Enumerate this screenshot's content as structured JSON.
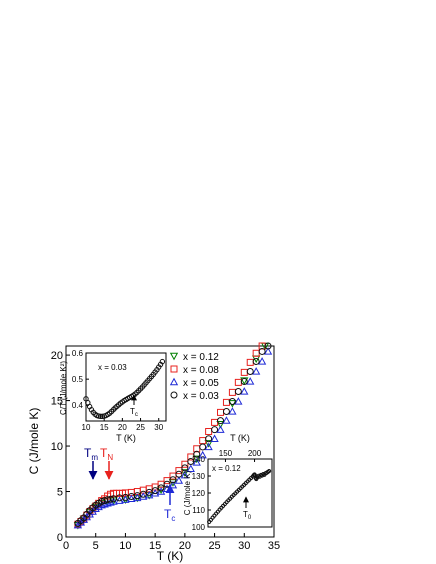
{
  "chart_data": [
    {
      "type": "scatter",
      "xlabel": "T (K)",
      "ylabel": "C (J/mole K)",
      "xlim": [
        0,
        35
      ],
      "ylim": [
        0,
        21
      ],
      "xticks": [
        "0",
        "5",
        "10",
        "15",
        "20",
        "25",
        "30",
        "35"
      ],
      "yticks": [
        "0",
        "5",
        "10",
        "15",
        "20"
      ],
      "legend": {
        "placement": "top-center",
        "items": [
          {
            "label": "x = 0.12",
            "color": "#008000",
            "marker": "triangle-down"
          },
          {
            "label": "x = 0.08",
            "color": "#e8211d",
            "marker": "square"
          },
          {
            "label": "x = 0.05",
            "color": "#1f2ad6",
            "marker": "triangle-up"
          },
          {
            "label": "x = 0.03",
            "color": "#111111",
            "marker": "circle"
          }
        ]
      },
      "annotations": [
        {
          "main": "T",
          "sub": "m",
          "color": "#000080"
        },
        {
          "main": "T",
          "sub": "N",
          "color": "#e8211d"
        },
        {
          "main": "T",
          "sub": "c",
          "color": "#1f2ad6"
        }
      ],
      "series": [
        {
          "name": "x = 0.12",
          "color": "#008000",
          "marker": "triangle-down",
          "x": [
            2,
            3,
            4,
            5,
            6,
            7,
            8,
            10,
            12,
            14,
            16,
            18,
            20,
            22,
            24,
            26,
            28,
            30,
            32,
            33.5
          ],
          "y": [
            1.3,
            2.0,
            2.7,
            3.3,
            3.7,
            3.9,
            4.0,
            4.1,
            4.3,
            4.6,
            5.2,
            6.0,
            7.1,
            8.6,
            10.3,
            12.4,
            14.7,
            17.2,
            19.6,
            21.0
          ]
        },
        {
          "name": "x = 0.08",
          "color": "#e8211d",
          "marker": "square",
          "x": [
            2,
            2.5,
            3,
            3.5,
            4,
            4.5,
            5,
            5.5,
            6,
            6.5,
            7,
            7.5,
            8,
            8.5,
            9,
            9.5,
            10,
            11,
            12,
            13,
            14,
            15,
            16,
            17,
            18,
            19,
            20,
            21,
            22,
            23,
            24,
            25,
            26,
            27,
            28,
            29,
            30,
            31,
            32,
            33
          ],
          "y": [
            1.4,
            1.7,
            2.0,
            2.4,
            2.8,
            3.1,
            3.4,
            3.7,
            4.0,
            4.2,
            4.5,
            4.7,
            4.8,
            4.8,
            4.8,
            4.8,
            4.85,
            4.9,
            5.0,
            5.15,
            5.3,
            5.5,
            5.8,
            6.2,
            6.7,
            7.3,
            8.0,
            8.8,
            9.7,
            10.6,
            11.6,
            12.6,
            13.7,
            14.8,
            15.9,
            17.0,
            18.1,
            19.2,
            20.2,
            21.0
          ]
        },
        {
          "name": "x = 0.05",
          "color": "#1f2ad6",
          "marker": "triangle-up",
          "x": [
            2,
            2.5,
            3,
            3.5,
            4,
            4.5,
            5,
            5.5,
            6,
            6.5,
            7,
            7.5,
            8,
            9,
            10,
            11,
            12,
            13,
            14,
            15,
            16,
            17,
            18,
            19,
            20,
            21,
            22,
            23,
            24,
            25,
            26,
            27,
            28,
            29,
            30,
            31,
            32,
            33,
            34
          ],
          "y": [
            1.3,
            1.6,
            1.9,
            2.2,
            2.5,
            2.8,
            3.1,
            3.3,
            3.5,
            3.6,
            3.7,
            3.8,
            3.9,
            4.0,
            4.1,
            4.2,
            4.3,
            4.45,
            4.6,
            4.8,
            5.0,
            5.3,
            5.7,
            6.2,
            6.8,
            7.5,
            8.2,
            9.0,
            9.9,
            10.8,
            11.8,
            12.8,
            13.8,
            14.9,
            16.0,
            17.1,
            18.2,
            19.3,
            20.4
          ]
        },
        {
          "name": "x = 0.03",
          "color": "#111111",
          "marker": "circle",
          "x": [
            2,
            2.5,
            3,
            3.5,
            4,
            4.5,
            5,
            5.5,
            6,
            6.5,
            7,
            7.5,
            8,
            9,
            10,
            11,
            12,
            13,
            14,
            15,
            16,
            17,
            18,
            19,
            20,
            21,
            22,
            23,
            24,
            25,
            26,
            27,
            28,
            29,
            30,
            31,
            32,
            33,
            34
          ],
          "y": [
            1.5,
            1.8,
            2.1,
            2.5,
            2.9,
            3.2,
            3.5,
            3.7,
            3.9,
            4.0,
            4.1,
            4.15,
            4.2,
            4.3,
            4.35,
            4.45,
            4.55,
            4.7,
            4.9,
            5.1,
            5.4,
            5.8,
            6.3,
            6.9,
            7.6,
            8.3,
            9.1,
            9.9,
            10.8,
            11.8,
            12.8,
            13.8,
            14.9,
            16.0,
            17.1,
            18.2,
            19.3,
            20.4,
            21.0
          ]
        }
      ]
    },
    {
      "type": "scatter",
      "xlabel": "T (K)",
      "ylabel": "C/T (J/mole K²)",
      "label": "x = 0.03",
      "xlim": [
        10,
        32
      ],
      "ylim": [
        0.34,
        0.6
      ],
      "xticks": [
        "10",
        "15",
        "20",
        "25",
        "30"
      ],
      "yticks": [
        "0.4",
        "0.5",
        "0.6"
      ],
      "annotation": {
        "main": "T",
        "sub": "c"
      },
      "series": [
        {
          "name": "x = 0.03",
          "color": "#111111",
          "marker": "circle",
          "x": [
            10,
            10.5,
            11,
            11.5,
            12,
            12.5,
            13,
            13.5,
            14,
            14.5,
            15,
            15.5,
            16,
            16.5,
            17,
            17.5,
            18,
            18.5,
            19,
            19.5,
            20,
            20.5,
            21,
            21.5,
            22,
            22.5,
            23,
            23.5,
            24,
            24.5,
            25,
            25.5,
            26,
            26.5,
            27,
            27.5,
            28,
            28.5,
            29,
            29.5,
            30,
            30.5,
            31
          ],
          "y": [
            0.425,
            0.41,
            0.395,
            0.383,
            0.373,
            0.366,
            0.361,
            0.359,
            0.358,
            0.358,
            0.359,
            0.361,
            0.365,
            0.37,
            0.376,
            0.383,
            0.39,
            0.396,
            0.402,
            0.408,
            0.413,
            0.418,
            0.422,
            0.426,
            0.43,
            0.434,
            0.438,
            0.443,
            0.449,
            0.456,
            0.463,
            0.47,
            0.478,
            0.486,
            0.494,
            0.502,
            0.51,
            0.518,
            0.527,
            0.536,
            0.546,
            0.556,
            0.567
          ]
        }
      ]
    },
    {
      "type": "scatter",
      "xlabel": "T (K)",
      "ylabel": "C (J/mole K)",
      "label": "x = 0.12",
      "xlim": [
        120,
        230
      ],
      "ylim": [
        100,
        140
      ],
      "xticks": [
        "150",
        "200"
      ],
      "yticks": [
        "100",
        "110",
        "120",
        "130",
        "140"
      ],
      "annotation": {
        "main": "T",
        "sub": "0"
      },
      "series": [
        {
          "name": "x = 0.12",
          "color": "#111111",
          "marker": "circle",
          "x": [
            122,
            125,
            128,
            131,
            134,
            137,
            140,
            143,
            146,
            149,
            152,
            155,
            158,
            161,
            164,
            167,
            170,
            173,
            176,
            179,
            182,
            185,
            188,
            191,
            194,
            197,
            199,
            200,
            201,
            202,
            203,
            205,
            207,
            209,
            211,
            213,
            215,
            217,
            219,
            221,
            223,
            225
          ],
          "y": [
            103,
            104.2,
            105.5,
            106.7,
            107.9,
            109,
            110.2,
            111.3,
            112.4,
            113.5,
            114.6,
            115.7,
            116.7,
            117.8,
            118.8,
            119.8,
            120.8,
            121.8,
            122.8,
            123.8,
            124.8,
            125.8,
            126.8,
            127.8,
            128.8,
            129.8,
            130.6,
            130.9,
            130.2,
            128.8,
            128.2,
            129.2,
            130.1,
            129.6,
            130.6,
            130.3,
            131.1,
            130.7,
            131.6,
            131.9,
            132.4,
            132.9
          ]
        }
      ]
    }
  ]
}
